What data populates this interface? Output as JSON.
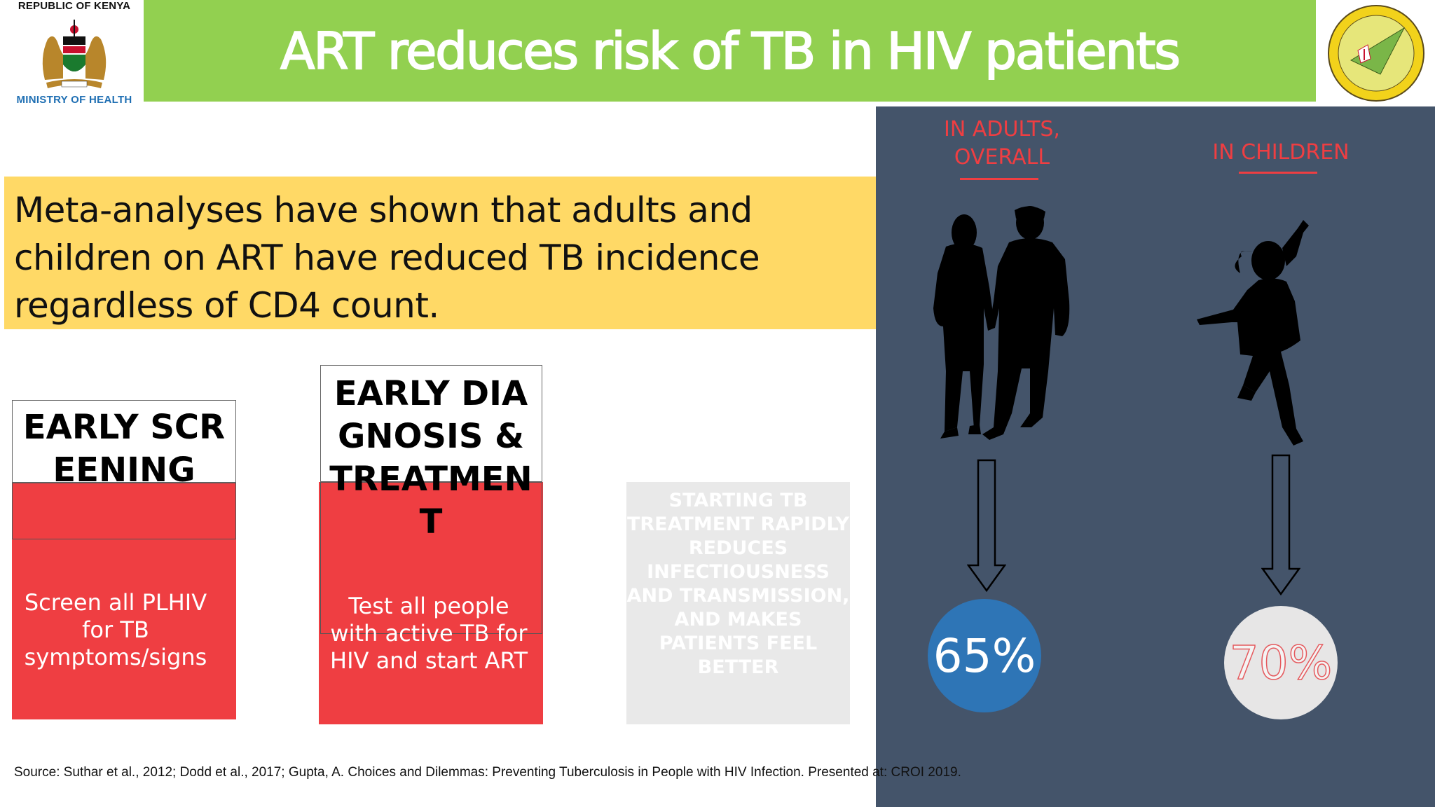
{
  "header": {
    "left_logo_top": "REPUBLIC OF KENYA",
    "left_logo_bottom": "MINISTRY OF HEALTH",
    "title": "ART reduces risk of TB in HIV patients"
  },
  "callout": {
    "text": "Meta-analyses have shown that adults and children on ART have reduced TB incidence regardless of CD4 count."
  },
  "cards": [
    {
      "heading": "EARLY SCREENING",
      "body": "Screen all PLHIV for TB symptoms/signs"
    },
    {
      "heading": "EARLY DIAGNOSIS & TREATMENT",
      "body": "Test all people with active TB for HIV and start ART"
    }
  ],
  "grey_card": {
    "text": "STARTING TB TREATMENT RAPIDLY REDUCES INFECTIOUSNESS AND TRANSMISSION, AND MAKES PATIENTS FEEL BETTER"
  },
  "panel": {
    "adults_label": "IN ADULTS, OVERALL",
    "children_label": "IN CHILDREN",
    "adults_value": "65%",
    "children_value": "70%"
  },
  "source": "Source: Suthar et al., 2012; Dodd et al., 2017; Gupta, A. Choices and Dilemmas: Preventing Tuberculosis in People with HIV Infection. Presented at: CROI 2019.",
  "colors": {
    "title_bar": "#92d050",
    "callout": "#ffd966",
    "card_red": "#ef3e42",
    "panel": "#44546a",
    "adults_circle": "#2e75b6"
  }
}
